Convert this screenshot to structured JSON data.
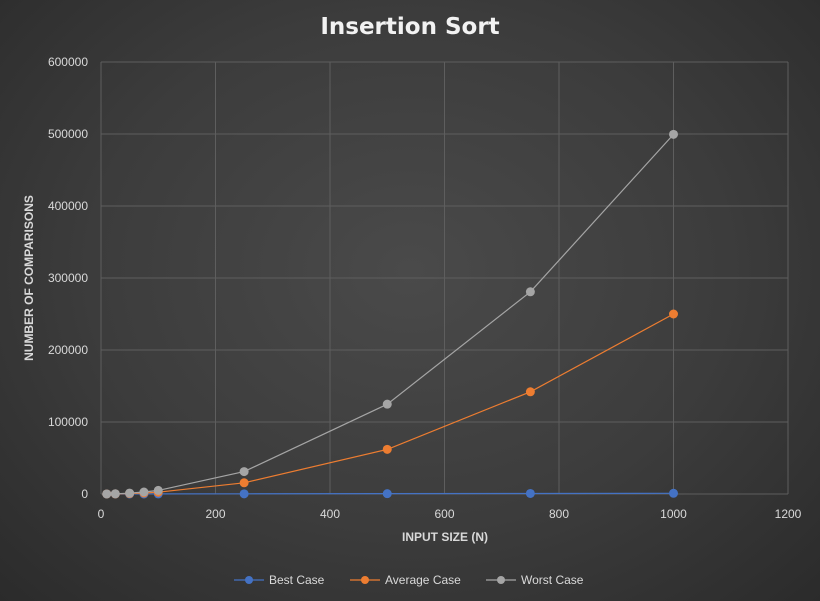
{
  "chart_data": {
    "type": "scatter",
    "title": "Insertion Sort",
    "xlabel": "INPUT SIZE (N)",
    "ylabel": "NUMBER OF COMPARISONS",
    "xlim": [
      0,
      1200
    ],
    "ylim": [
      0,
      600000
    ],
    "x_ticks": [
      0,
      200,
      400,
      600,
      800,
      1000,
      1200
    ],
    "y_ticks": [
      0,
      100000,
      200000,
      300000,
      400000,
      500000,
      600000
    ],
    "grid": true,
    "legend_position": "bottom",
    "x": [
      10,
      25,
      50,
      75,
      100,
      250,
      500,
      750,
      1000
    ],
    "series": [
      {
        "name": "Best Case",
        "color": "#4472c4",
        "values": [
          9,
          24,
          49,
          74,
          99,
          249,
          499,
          749,
          999
        ]
      },
      {
        "name": "Average Case",
        "color": "#ed7d31",
        "values": [
          25,
          160,
          640,
          1400,
          2500,
          15600,
          62000,
          142000,
          250000
        ]
      },
      {
        "name": "Worst Case",
        "color": "#a5a5a5",
        "values": [
          45,
          300,
          1225,
          2775,
          4950,
          31125,
          124750,
          280875,
          499500
        ]
      }
    ]
  }
}
